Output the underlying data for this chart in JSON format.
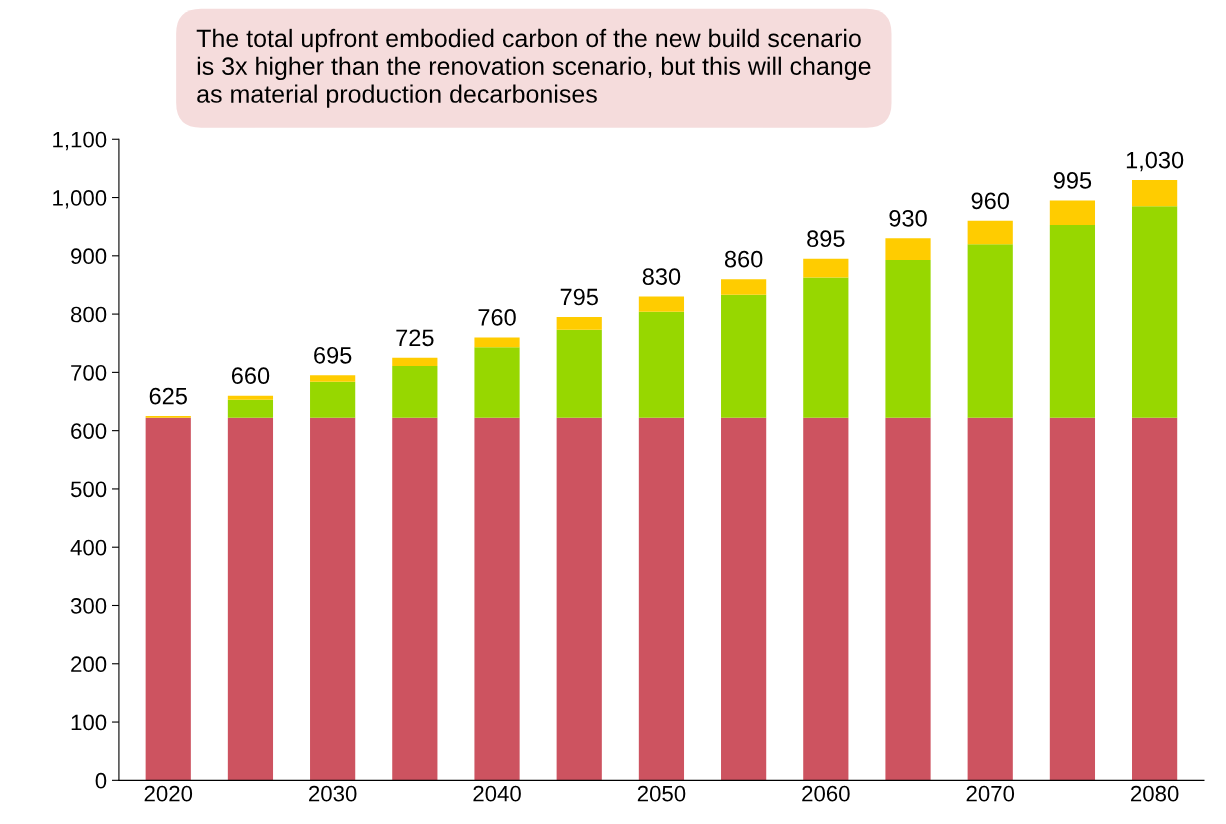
{
  "chart_data": {
    "type": "bar",
    "stacked": true,
    "categories": [
      "2020",
      null,
      "2030",
      null,
      "2040",
      null,
      "2050",
      null,
      "2060",
      null,
      "2070",
      null,
      "2080"
    ],
    "series": [
      {
        "color": "#cd5360",
        "values": [
          622,
          622,
          622,
          622,
          622,
          622,
          622,
          622,
          622,
          622,
          622,
          622,
          622
        ]
      },
      {
        "color": "#97d700",
        "values": [
          0,
          31,
          62,
          89,
          121,
          151,
          182,
          211,
          241,
          271,
          298,
          331,
          363
        ]
      },
      {
        "color": "#ffcc00",
        "values": [
          3,
          7,
          11,
          14,
          17,
          22,
          26,
          27,
          32,
          37,
          40,
          42,
          45
        ]
      }
    ],
    "totals": [
      "625",
      "660",
      "695",
      "725",
      "760",
      "795",
      "830",
      "860",
      "895",
      "930",
      "960",
      "995",
      "1,030"
    ],
    "ylim": [
      0,
      1100
    ],
    "yticks": [
      0,
      100,
      200,
      300,
      400,
      500,
      600,
      700,
      800,
      900,
      {
        "value": 1000,
        "label": "1,000"
      },
      {
        "value": 1100,
        "label": "1,100"
      }
    ],
    "grid": false,
    "annotations": [
      "The total upfront embodied carbon of the new build scenario is 3x higher than the renovation scenario, but this will change as material production decarbonises"
    ]
  }
}
